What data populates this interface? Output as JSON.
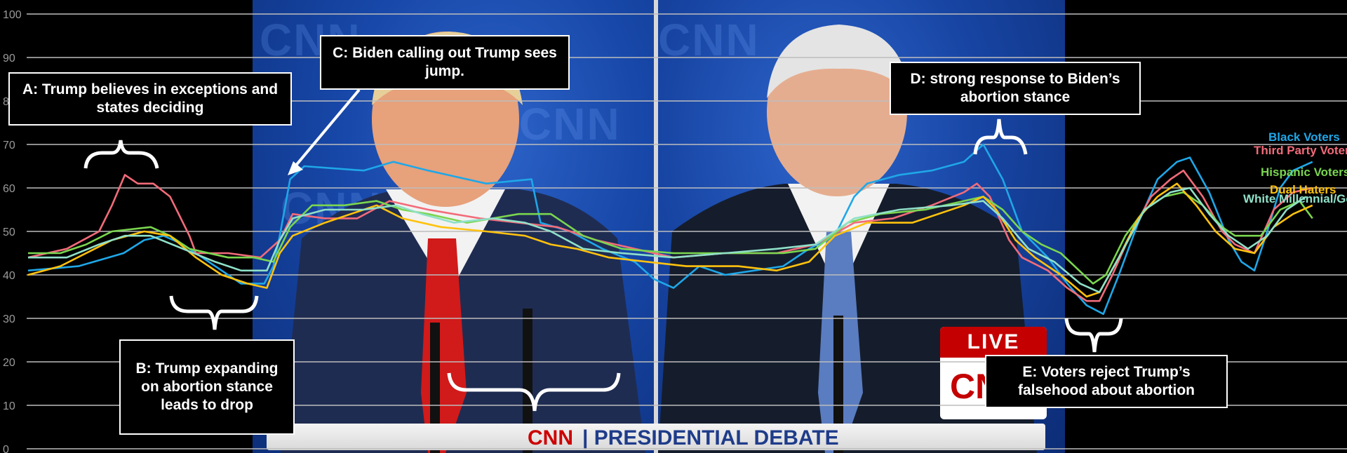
{
  "chart_data": {
    "type": "line",
    "ylim": [
      0,
      100
    ],
    "yticks": [
      "0",
      "10",
      "20",
      "30",
      "40",
      "50",
      "60",
      "70",
      "80",
      "90",
      "100"
    ],
    "grid": true,
    "legend_placement": "right",
    "series": [
      {
        "name": "Black Voters",
        "color": "#1fa7e8",
        "points": [
          [
            0.0,
            41
          ],
          [
            3.9,
            42
          ],
          [
            7.4,
            45
          ],
          [
            9.0,
            48
          ],
          [
            10.5,
            49
          ],
          [
            12.0,
            47
          ],
          [
            14.0,
            43
          ],
          [
            16.5,
            38
          ],
          [
            18.3,
            38
          ],
          [
            19.0,
            42
          ],
          [
            19.5,
            49
          ],
          [
            20.3,
            62
          ],
          [
            21.4,
            65
          ],
          [
            26.0,
            64
          ],
          [
            28.3,
            66
          ],
          [
            31.0,
            64
          ],
          [
            35.5,
            61
          ],
          [
            39.0,
            62
          ],
          [
            39.7,
            52
          ],
          [
            42.0,
            50
          ],
          [
            44.5,
            46
          ],
          [
            47.0,
            43
          ],
          [
            48.5,
            39
          ],
          [
            50.0,
            37
          ],
          [
            52.0,
            42
          ],
          [
            54.0,
            40
          ],
          [
            58.5,
            42
          ],
          [
            60.5,
            46
          ],
          [
            62.5,
            49
          ],
          [
            64.0,
            58
          ],
          [
            65.0,
            61
          ],
          [
            67.5,
            63
          ],
          [
            70.0,
            64
          ],
          [
            72.5,
            66
          ],
          [
            74.0,
            70
          ],
          [
            75.5,
            62
          ],
          [
            77.0,
            50
          ],
          [
            79.0,
            44
          ],
          [
            80.5,
            38
          ],
          [
            82.0,
            33
          ],
          [
            83.3,
            31
          ],
          [
            84.5,
            40
          ],
          [
            86.0,
            52
          ],
          [
            87.5,
            62
          ],
          [
            89.0,
            66
          ],
          [
            90.0,
            67
          ],
          [
            91.5,
            59
          ],
          [
            93.0,
            48
          ],
          [
            94.0,
            43
          ],
          [
            95.0,
            41
          ],
          [
            96.0,
            50
          ],
          [
            97.0,
            60
          ],
          [
            98.0,
            64
          ],
          [
            99.5,
            66
          ]
        ]
      },
      {
        "name": "Third Party Voters",
        "color": "#f26b7a",
        "points": [
          [
            0.0,
            44
          ],
          [
            3.0,
            46
          ],
          [
            5.5,
            50
          ],
          [
            6.5,
            56
          ],
          [
            7.5,
            63
          ],
          [
            8.5,
            61
          ],
          [
            9.7,
            61
          ],
          [
            11.0,
            58
          ],
          [
            12.5,
            49
          ],
          [
            13.0,
            45
          ],
          [
            15.5,
            45
          ],
          [
            18.0,
            44
          ],
          [
            19.5,
            48
          ],
          [
            20.5,
            54
          ],
          [
            23.0,
            53
          ],
          [
            25.5,
            53
          ],
          [
            28.0,
            57
          ],
          [
            31.0,
            55
          ],
          [
            35.0,
            53
          ],
          [
            38.0,
            52
          ],
          [
            41.0,
            51
          ],
          [
            44.0,
            48
          ],
          [
            47.0,
            46
          ],
          [
            50.0,
            44
          ],
          [
            54.0,
            45
          ],
          [
            58.0,
            45
          ],
          [
            61.0,
            47
          ],
          [
            64.0,
            52
          ],
          [
            67.0,
            53
          ],
          [
            70.0,
            56
          ],
          [
            72.5,
            59
          ],
          [
            73.5,
            61
          ],
          [
            74.5,
            58
          ],
          [
            76.0,
            48
          ],
          [
            77.0,
            44
          ],
          [
            79.0,
            41
          ],
          [
            80.5,
            37
          ],
          [
            82.0,
            34
          ],
          [
            83.0,
            34
          ],
          [
            84.0,
            40
          ],
          [
            85.5,
            50
          ],
          [
            87.0,
            58
          ],
          [
            88.5,
            62
          ],
          [
            89.5,
            64
          ],
          [
            91.0,
            58
          ],
          [
            92.5,
            50
          ],
          [
            93.5,
            47
          ],
          [
            95.0,
            45
          ],
          [
            96.5,
            55
          ],
          [
            98.0,
            59
          ],
          [
            99.5,
            60
          ]
        ]
      },
      {
        "name": "Hispanic Voters",
        "color": "#7ad64f",
        "points": [
          [
            0.0,
            45
          ],
          [
            2.5,
            45
          ],
          [
            4.5,
            47
          ],
          [
            6.5,
            50
          ],
          [
            9.5,
            51
          ],
          [
            11.0,
            49
          ],
          [
            12.5,
            46
          ],
          [
            15.5,
            44
          ],
          [
            17.5,
            44
          ],
          [
            19.0,
            43
          ],
          [
            20.3,
            51
          ],
          [
            22.0,
            56
          ],
          [
            24.5,
            56
          ],
          [
            27.0,
            57
          ],
          [
            29.0,
            55
          ],
          [
            31.0,
            54
          ],
          [
            34.0,
            52
          ],
          [
            38.0,
            54
          ],
          [
            40.5,
            54
          ],
          [
            43.0,
            49
          ],
          [
            46.0,
            46
          ],
          [
            50.0,
            45
          ],
          [
            55.0,
            45
          ],
          [
            58.5,
            45
          ],
          [
            61.0,
            46
          ],
          [
            63.5,
            52
          ],
          [
            66.0,
            54
          ],
          [
            69.5,
            55
          ],
          [
            72.5,
            57
          ],
          [
            74.0,
            58
          ],
          [
            75.5,
            55
          ],
          [
            77.0,
            50
          ],
          [
            78.5,
            47
          ],
          [
            80.0,
            45
          ],
          [
            82.5,
            38
          ],
          [
            83.5,
            40
          ],
          [
            85.0,
            49
          ],
          [
            86.5,
            55
          ],
          [
            88.0,
            58
          ],
          [
            89.5,
            59
          ],
          [
            91.0,
            56
          ],
          [
            92.5,
            51
          ],
          [
            93.5,
            49
          ],
          [
            95.5,
            49
          ],
          [
            97.0,
            55
          ],
          [
            98.5,
            57
          ],
          [
            99.5,
            53
          ]
        ]
      },
      {
        "name": "Dual Haters",
        "color": "#ffc20e",
        "points": [
          [
            0.0,
            40
          ],
          [
            2.5,
            42
          ],
          [
            4.5,
            45
          ],
          [
            6.5,
            48
          ],
          [
            9.0,
            50
          ],
          [
            11.0,
            49
          ],
          [
            13.0,
            44
          ],
          [
            15.0,
            40
          ],
          [
            17.0,
            38
          ],
          [
            18.5,
            37
          ],
          [
            19.5,
            45
          ],
          [
            20.5,
            49
          ],
          [
            23.0,
            52
          ],
          [
            25.0,
            54
          ],
          [
            27.0,
            56
          ],
          [
            29.0,
            53
          ],
          [
            32.0,
            51
          ],
          [
            35.5,
            50
          ],
          [
            38.5,
            49
          ],
          [
            40.5,
            47
          ],
          [
            42.5,
            46
          ],
          [
            45.0,
            44
          ],
          [
            48.0,
            43
          ],
          [
            51.0,
            42
          ],
          [
            55.0,
            42
          ],
          [
            58.0,
            41
          ],
          [
            60.5,
            43
          ],
          [
            62.5,
            49
          ],
          [
            65.0,
            52
          ],
          [
            68.5,
            52
          ],
          [
            72.5,
            56
          ],
          [
            74.0,
            58
          ],
          [
            75.0,
            55
          ],
          [
            76.5,
            48
          ],
          [
            78.0,
            44
          ],
          [
            80.0,
            40
          ],
          [
            82.0,
            35
          ],
          [
            83.0,
            36
          ],
          [
            84.5,
            44
          ],
          [
            86.0,
            53
          ],
          [
            87.5,
            58
          ],
          [
            89.0,
            61
          ],
          [
            90.5,
            56
          ],
          [
            92.0,
            50
          ],
          [
            93.5,
            46
          ],
          [
            95.0,
            45
          ],
          [
            96.5,
            51
          ],
          [
            98.0,
            54
          ],
          [
            99.5,
            56
          ]
        ]
      },
      {
        "name": "White Millennial/Gen",
        "color": "#8fe0c8",
        "points": [
          [
            0.0,
            44
          ],
          [
            3.0,
            44
          ],
          [
            5.5,
            47
          ],
          [
            7.5,
            49
          ],
          [
            9.5,
            49
          ],
          [
            12.0,
            46
          ],
          [
            14.5,
            43
          ],
          [
            16.5,
            41
          ],
          [
            18.5,
            41
          ],
          [
            19.5,
            48
          ],
          [
            20.5,
            53
          ],
          [
            23.0,
            55
          ],
          [
            26.0,
            55
          ],
          [
            28.5,
            56
          ],
          [
            30.5,
            54
          ],
          [
            33.0,
            52
          ],
          [
            36.0,
            53
          ],
          [
            38.5,
            52
          ],
          [
            40.5,
            50
          ],
          [
            43.0,
            46
          ],
          [
            46.0,
            45
          ],
          [
            50.0,
            44
          ],
          [
            54.0,
            45
          ],
          [
            58.0,
            46
          ],
          [
            61.0,
            47
          ],
          [
            64.0,
            53
          ],
          [
            67.5,
            55
          ],
          [
            71.5,
            56
          ],
          [
            74.0,
            57
          ],
          [
            75.5,
            53
          ],
          [
            77.5,
            46
          ],
          [
            79.5,
            43
          ],
          [
            81.5,
            38
          ],
          [
            83.0,
            36
          ],
          [
            84.5,
            44
          ],
          [
            86.5,
            55
          ],
          [
            88.5,
            59
          ],
          [
            90.0,
            60
          ],
          [
            91.5,
            54
          ],
          [
            93.0,
            49
          ],
          [
            94.5,
            46
          ],
          [
            96.0,
            49
          ],
          [
            97.5,
            55
          ],
          [
            99.0,
            58
          ]
        ]
      }
    ],
    "annotations": [
      {
        "id": "a",
        "text": "A: Trump believes in exceptions and states deciding"
      },
      {
        "id": "b",
        "text": "B: Trump expanding on abortion stance leads to drop"
      },
      {
        "id": "c",
        "text": "C: Biden calling out Trump sees jump."
      },
      {
        "id": "d",
        "text": "D: strong response to Biden’s abortion stance"
      },
      {
        "id": "e",
        "text": "E: Voters reject Trump’s falsehood about abortion"
      }
    ]
  },
  "video": {
    "banner_brand": "CNN",
    "banner_title": "| PRESIDENTIAL DEBATE",
    "live_label": "LIVE",
    "live_logo": "CNN",
    "bg_logo": "CNN"
  }
}
